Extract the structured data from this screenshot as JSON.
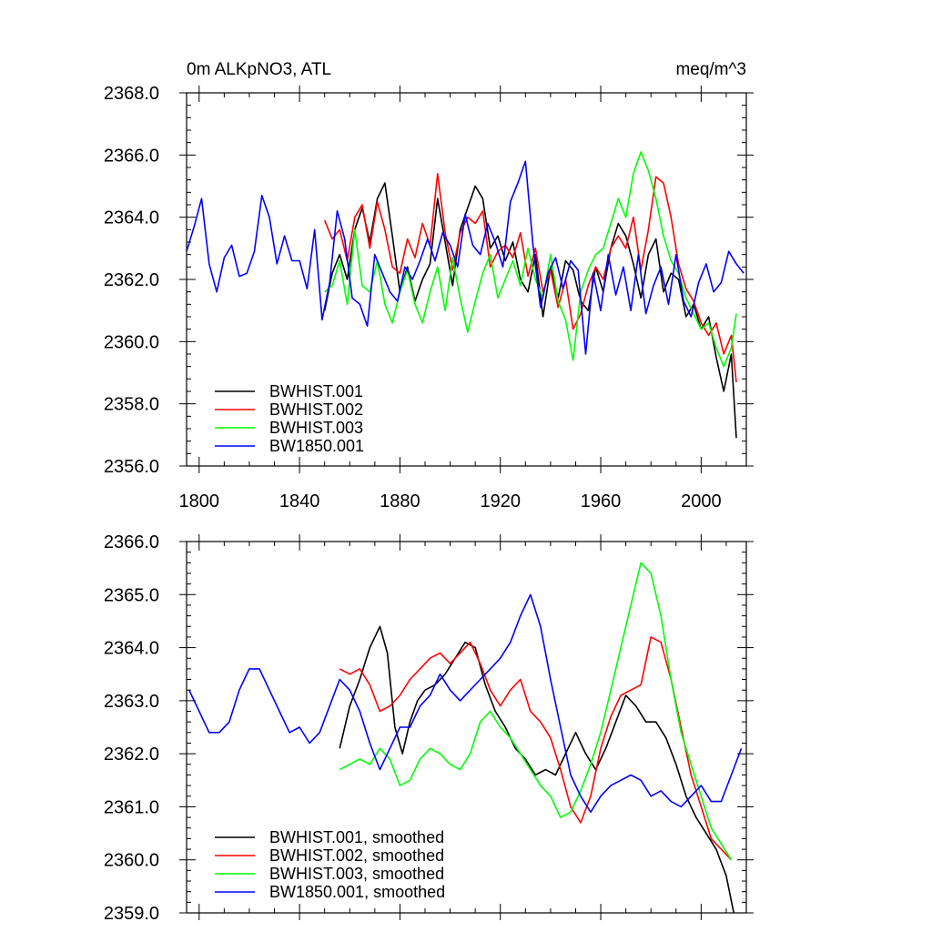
{
  "chart_data": [
    {
      "type": "line",
      "title_left": "0m ALKpNO3, ATL",
      "title_right": "meq/m^3",
      "xlabel": "",
      "ylabel": "",
      "xlim": [
        1795,
        2018
      ],
      "ylim": [
        2356.0,
        2368.0
      ],
      "xticks": [
        1800,
        1840,
        1880,
        1920,
        1960,
        2000
      ],
      "yticks": [
        2356.0,
        2358.0,
        2360.0,
        2362.0,
        2364.0,
        2366.0,
        2368.0
      ],
      "ytick_labels": [
        "2356.0",
        "2358.0",
        "2360.0",
        "2362.0",
        "2364.0",
        "2366.0",
        "2368.0"
      ],
      "legend_position": "bottom-left",
      "series": [
        {
          "name": "BWHIST.001",
          "color": "#000000",
          "x": [
            1850,
            1853,
            1856,
            1859,
            1862,
            1865,
            1868,
            1871,
            1874,
            1877,
            1880,
            1883,
            1886,
            1889,
            1892,
            1895,
            1898,
            1901,
            1904,
            1907,
            1910,
            1913,
            1916,
            1919,
            1922,
            1925,
            1928,
            1931,
            1934,
            1937,
            1940,
            1943,
            1946,
            1949,
            1952,
            1955,
            1958,
            1961,
            1964,
            1967,
            1970,
            1973,
            1976,
            1979,
            1982,
            1985,
            1988,
            1991,
            1994,
            1997,
            2000,
            2003,
            2006,
            2009,
            2012,
            2014
          ],
          "y": [
            2361.0,
            2362.2,
            2362.8,
            2362.0,
            2363.6,
            2364.3,
            2363.2,
            2364.6,
            2365.1,
            2363.4,
            2361.6,
            2362.4,
            2361.3,
            2362.0,
            2362.5,
            2364.6,
            2363.2,
            2361.8,
            2363.6,
            2364.3,
            2365.0,
            2364.6,
            2363.0,
            2363.4,
            2362.6,
            2363.2,
            2362.0,
            2361.6,
            2362.8,
            2360.8,
            2362.4,
            2361.4,
            2362.6,
            2362.3,
            2361.3,
            2361.0,
            2362.4,
            2361.6,
            2363.0,
            2363.8,
            2363.4,
            2362.5,
            2361.4,
            2362.8,
            2363.3,
            2361.6,
            2362.2,
            2362.0,
            2360.8,
            2361.2,
            2360.4,
            2360.8,
            2359.5,
            2358.4,
            2359.6,
            2356.9
          ]
        },
        {
          "name": "BWHIST.002",
          "color": "#ff0000",
          "x": [
            1850,
            1853,
            1856,
            1859,
            1862,
            1865,
            1868,
            1871,
            1874,
            1877,
            1880,
            1883,
            1886,
            1889,
            1892,
            1895,
            1898,
            1901,
            1904,
            1907,
            1910,
            1913,
            1916,
            1919,
            1922,
            1925,
            1928,
            1931,
            1934,
            1937,
            1940,
            1943,
            1946,
            1949,
            1952,
            1955,
            1958,
            1961,
            1964,
            1967,
            1970,
            1973,
            1976,
            1979,
            1982,
            1985,
            1988,
            1991,
            1994,
            1997,
            2000,
            2003,
            2006,
            2009,
            2012,
            2014
          ],
          "y": [
            2363.9,
            2363.3,
            2363.6,
            2362.6,
            2364.0,
            2364.4,
            2363.0,
            2364.5,
            2363.6,
            2362.4,
            2362.2,
            2363.3,
            2362.7,
            2363.8,
            2363.1,
            2365.4,
            2363.5,
            2362.3,
            2363.5,
            2364.0,
            2363.8,
            2364.2,
            2362.4,
            2362.9,
            2363.1,
            2362.7,
            2363.5,
            2362.1,
            2363.0,
            2361.6,
            2362.3,
            2361.1,
            2362.0,
            2360.4,
            2360.9,
            2361.8,
            2362.4,
            2362.0,
            2363.0,
            2363.4,
            2363.0,
            2364.0,
            2362.3,
            2363.6,
            2365.3,
            2365.1,
            2364.0,
            2362.5,
            2361.7,
            2361.3,
            2360.6,
            2360.2,
            2360.6,
            2359.6,
            2360.2,
            2358.7
          ]
        },
        {
          "name": "BWHIST.003",
          "color": "#00ff00",
          "x": [
            1850,
            1853,
            1856,
            1859,
            1862,
            1865,
            1868,
            1871,
            1874,
            1877,
            1880,
            1883,
            1886,
            1889,
            1892,
            1895,
            1898,
            1901,
            1904,
            1907,
            1910,
            1913,
            1916,
            1919,
            1922,
            1925,
            1928,
            1931,
            1934,
            1937,
            1940,
            1943,
            1946,
            1949,
            1952,
            1955,
            1958,
            1961,
            1964,
            1967,
            1970,
            1973,
            1976,
            1979,
            1982,
            1985,
            1988,
            1991,
            1994,
            1997,
            2000,
            2003,
            2006,
            2009,
            2012,
            2014
          ],
          "y": [
            2361.6,
            2361.8,
            2362.6,
            2361.2,
            2363.6,
            2361.8,
            2361.6,
            2362.6,
            2361.2,
            2360.6,
            2361.6,
            2362.3,
            2361.2,
            2360.6,
            2361.6,
            2362.4,
            2361.0,
            2362.7,
            2361.4,
            2360.3,
            2361.3,
            2362.2,
            2362.8,
            2361.4,
            2362.0,
            2362.6,
            2361.8,
            2363.0,
            2362.0,
            2361.4,
            2362.8,
            2361.3,
            2360.7,
            2359.4,
            2361.6,
            2362.3,
            2362.8,
            2363.0,
            2363.8,
            2364.6,
            2364.0,
            2365.4,
            2366.1,
            2365.5,
            2364.6,
            2363.4,
            2362.6,
            2362.2,
            2361.4,
            2360.9,
            2360.4,
            2360.6,
            2359.8,
            2359.2,
            2359.8,
            2360.9
          ]
        },
        {
          "name": "BW1850.001",
          "color": "#0000ff",
          "x": [
            1795,
            1798,
            1801,
            1804,
            1807,
            1810,
            1813,
            1816,
            1819,
            1822,
            1825,
            1828,
            1831,
            1834,
            1837,
            1840,
            1843,
            1846,
            1849,
            1852,
            1855,
            1858,
            1861,
            1864,
            1867,
            1870,
            1873,
            1876,
            1879,
            1882,
            1885,
            1888,
            1891,
            1894,
            1897,
            1900,
            1903,
            1906,
            1909,
            1912,
            1915,
            1918,
            1921,
            1924,
            1927,
            1930,
            1933,
            1936,
            1939,
            1942,
            1945,
            1948,
            1951,
            1954,
            1957,
            1960,
            1963,
            1966,
            1969,
            1972,
            1975,
            1978,
            1981,
            1984,
            1987,
            1990,
            1993,
            1996,
            1999,
            2002,
            2005,
            2008,
            2011,
            2014,
            2017
          ],
          "y": [
            2362.9,
            2363.7,
            2364.6,
            2362.5,
            2361.6,
            2362.7,
            2363.1,
            2362.1,
            2362.2,
            2362.9,
            2364.7,
            2364.0,
            2362.5,
            2363.4,
            2362.6,
            2362.6,
            2361.7,
            2363.6,
            2360.7,
            2361.9,
            2364.2,
            2363.3,
            2361.4,
            2361.2,
            2360.5,
            2362.8,
            2362.2,
            2361.6,
            2361.3,
            2362.4,
            2362.0,
            2362.6,
            2363.3,
            2362.6,
            2363.5,
            2363.1,
            2362.4,
            2364.1,
            2363.1,
            2362.8,
            2363.8,
            2363.2,
            2362.4,
            2364.5,
            2365.1,
            2365.8,
            2363.1,
            2361.1,
            2362.2,
            2362.7,
            2361.7,
            2362.6,
            2362.3,
            2359.6,
            2362.2,
            2361.0,
            2362.8,
            2361.5,
            2362.4,
            2361.0,
            2362.8,
            2360.9,
            2361.8,
            2362.4,
            2361.2,
            2362.8,
            2361.3,
            2360.8,
            2361.9,
            2362.5,
            2361.6,
            2361.9,
            2362.9,
            2362.5,
            2362.2
          ]
        }
      ]
    },
    {
      "type": "line",
      "title_left": "",
      "title_right": "",
      "xlabel": "",
      "ylabel": "",
      "xlim": [
        1795,
        2018
      ],
      "ylim": [
        2359.0,
        2366.0
      ],
      "xticks": [
        1800,
        1840,
        1880,
        1920,
        1960,
        2000
      ],
      "yticks": [
        2359.0,
        2360.0,
        2361.0,
        2362.0,
        2363.0,
        2364.0,
        2365.0,
        2366.0
      ],
      "ytick_labels": [
        "2359.0",
        "2360.0",
        "2361.0",
        "2362.0",
        "2363.0",
        "2364.0",
        "2365.0",
        "2366.0"
      ],
      "legend_position": "bottom-left",
      "series": [
        {
          "name": "BWHIST.001, smoothed",
          "color": "#000000",
          "x": [
            1856,
            1860,
            1864,
            1868,
            1872,
            1875,
            1878,
            1881,
            1884,
            1887,
            1890,
            1894,
            1898,
            1902,
            1906,
            1910,
            1914,
            1918,
            1922,
            1926,
            1930,
            1934,
            1938,
            1942,
            1946,
            1950,
            1954,
            1958,
            1962,
            1966,
            1970,
            1974,
            1978,
            1982,
            1986,
            1990,
            1994,
            1998,
            2002,
            2006,
            2010,
            2013
          ],
          "y": [
            2362.1,
            2362.9,
            2363.4,
            2364.0,
            2364.4,
            2363.9,
            2362.5,
            2362.0,
            2362.6,
            2363.0,
            2363.2,
            2363.3,
            2363.5,
            2363.8,
            2364.1,
            2364.0,
            2363.3,
            2362.8,
            2362.5,
            2362.1,
            2361.9,
            2361.6,
            2361.7,
            2361.6,
            2362.0,
            2362.4,
            2362.0,
            2361.7,
            2362.1,
            2362.6,
            2363.1,
            2362.9,
            2362.6,
            2362.6,
            2362.3,
            2361.8,
            2361.2,
            2360.8,
            2360.5,
            2360.2,
            2359.7,
            2359.0
          ]
        },
        {
          "name": "BWHIST.002, smoothed",
          "color": "#ff0000",
          "x": [
            1856,
            1860,
            1864,
            1868,
            1872,
            1876,
            1880,
            1884,
            1888,
            1892,
            1896,
            1900,
            1904,
            1908,
            1912,
            1916,
            1920,
            1924,
            1928,
            1932,
            1936,
            1940,
            1944,
            1948,
            1952,
            1956,
            1960,
            1964,
            1968,
            1972,
            1976,
            1980,
            1984,
            1988,
            1992,
            1996,
            2000,
            2004,
            2008,
            2012
          ],
          "y": [
            2363.6,
            2363.5,
            2363.6,
            2363.3,
            2362.8,
            2362.9,
            2363.1,
            2363.4,
            2363.6,
            2363.8,
            2363.9,
            2363.7,
            2363.9,
            2364.1,
            2363.7,
            2363.2,
            2362.9,
            2363.2,
            2363.4,
            2362.8,
            2362.6,
            2362.3,
            2361.7,
            2361.0,
            2360.7,
            2361.2,
            2362.1,
            2362.7,
            2363.1,
            2363.2,
            2363.3,
            2364.2,
            2364.1,
            2363.4,
            2362.5,
            2361.6,
            2361.0,
            2360.4,
            2360.2,
            2360.0
          ]
        },
        {
          "name": "BWHIST.003, smoothed",
          "color": "#00ff00",
          "x": [
            1856,
            1860,
            1864,
            1868,
            1872,
            1876,
            1880,
            1884,
            1888,
            1892,
            1896,
            1900,
            1904,
            1908,
            1912,
            1916,
            1920,
            1924,
            1928,
            1932,
            1936,
            1940,
            1944,
            1948,
            1952,
            1956,
            1960,
            1964,
            1968,
            1972,
            1976,
            1980,
            1984,
            1988,
            1992,
            1996,
            2000,
            2004,
            2008,
            2012
          ],
          "y": [
            2361.7,
            2361.8,
            2361.9,
            2361.8,
            2362.1,
            2361.9,
            2361.4,
            2361.5,
            2361.9,
            2362.1,
            2362.0,
            2361.8,
            2361.7,
            2362.0,
            2362.6,
            2362.8,
            2362.5,
            2362.3,
            2362.0,
            2361.7,
            2361.4,
            2361.2,
            2360.8,
            2360.9,
            2361.3,
            2361.8,
            2362.4,
            2363.2,
            2364.0,
            2364.8,
            2365.6,
            2365.4,
            2364.6,
            2363.4,
            2362.4,
            2361.8,
            2361.2,
            2360.6,
            2360.3,
            2360.0
          ]
        },
        {
          "name": "BW1850.001, smoothed",
          "color": "#0000ff",
          "x": [
            1796,
            1800,
            1804,
            1808,
            1812,
            1816,
            1820,
            1824,
            1828,
            1832,
            1836,
            1840,
            1844,
            1848,
            1852,
            1856,
            1860,
            1864,
            1868,
            1872,
            1876,
            1880,
            1884,
            1888,
            1892,
            1896,
            1900,
            1904,
            1908,
            1912,
            1916,
            1920,
            1924,
            1928,
            1932,
            1936,
            1940,
            1944,
            1948,
            1952,
            1956,
            1960,
            1964,
            1968,
            1972,
            1976,
            1980,
            1984,
            1988,
            1992,
            1996,
            2000,
            2004,
            2008,
            2012,
            2016
          ],
          "y": [
            2363.2,
            2362.8,
            2362.4,
            2362.4,
            2362.6,
            2363.2,
            2363.6,
            2363.6,
            2363.2,
            2362.8,
            2362.4,
            2362.5,
            2362.2,
            2362.4,
            2362.9,
            2363.4,
            2363.2,
            2362.8,
            2362.2,
            2361.7,
            2362.1,
            2362.5,
            2362.5,
            2362.9,
            2363.1,
            2363.5,
            2363.2,
            2363.0,
            2363.2,
            2363.4,
            2363.6,
            2363.8,
            2364.1,
            2364.6,
            2365.0,
            2364.4,
            2363.4,
            2362.5,
            2361.6,
            2361.2,
            2360.9,
            2361.2,
            2361.4,
            2361.5,
            2361.6,
            2361.5,
            2361.2,
            2361.3,
            2361.1,
            2361.0,
            2361.2,
            2361.4,
            2361.1,
            2361.1,
            2361.6,
            2362.1
          ]
        }
      ]
    }
  ]
}
